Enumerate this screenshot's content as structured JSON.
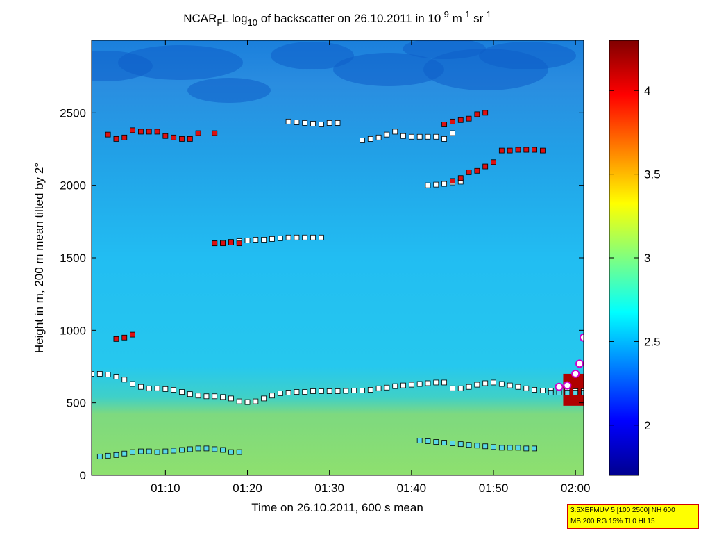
{
  "chart_data": {
    "type": "heatmap",
    "title": {
      "prefix": "NCAR",
      "sub1": "F",
      "mid": "L log",
      "sub2": "10",
      "mid2": " of backscatter on 26.10.2011 in 10",
      "sup1": "-9",
      "mid3": " m",
      "sup2": "-1",
      "mid4": " sr",
      "sup3": "-1"
    },
    "xlabel": "Time on 26.10.2011, 600 s mean",
    "ylabel": "Height in m, 200 m mean tilted by 2°",
    "x_range_minutes": [
      61,
      121
    ],
    "x_ticks": [
      {
        "minute": 70,
        "label": "01:10"
      },
      {
        "minute": 80,
        "label": "01:20"
      },
      {
        "minute": 90,
        "label": "01:30"
      },
      {
        "minute": 100,
        "label": "01:40"
      },
      {
        "minute": 110,
        "label": "01:50"
      },
      {
        "minute": 120,
        "label": "02:00"
      }
    ],
    "ylim": [
      0,
      3000
    ],
    "y_ticks": [
      {
        "value": 0,
        "label": "0"
      },
      {
        "value": 500,
        "label": "500"
      },
      {
        "value": 1000,
        "label": "1000"
      },
      {
        "value": 1500,
        "label": "1500"
      },
      {
        "value": 2000,
        "label": "2000"
      },
      {
        "value": 2500,
        "label": "2500"
      }
    ],
    "colorbar": {
      "range": [
        1.7,
        4.3
      ],
      "ticks": [
        {
          "value": 2,
          "label": "2"
        },
        {
          "value": 2.5,
          "label": "2.5"
        },
        {
          "value": 3,
          "label": "3"
        },
        {
          "value": 3.5,
          "label": "3.5"
        },
        {
          "value": 4,
          "label": "4"
        }
      ],
      "colormap": "jet"
    },
    "field": {
      "description_levels": "log10 backscatter approx by height",
      "profile": [
        {
          "h": 0,
          "v": 2.85
        },
        {
          "h": 400,
          "v": 2.78
        },
        {
          "h": 600,
          "v": 2.62
        },
        {
          "h": 900,
          "v": 2.48
        },
        {
          "h": 1500,
          "v": 2.42
        },
        {
          "h": 2200,
          "v": 2.35
        },
        {
          "h": 2600,
          "v": 2.28
        },
        {
          "h": 3000,
          "v": 2.2
        }
      ]
    },
    "series": [
      {
        "marker": "white",
        "points": [
          [
            61,
            700
          ],
          [
            62,
            700
          ],
          [
            63,
            695
          ],
          [
            64,
            680
          ],
          [
            65,
            660
          ],
          [
            66,
            630
          ],
          [
            67,
            610
          ],
          [
            68,
            600
          ],
          [
            69,
            600
          ],
          [
            70,
            595
          ],
          [
            71,
            590
          ],
          [
            72,
            575
          ],
          [
            73,
            560
          ],
          [
            74,
            550
          ],
          [
            75,
            545
          ],
          [
            76,
            545
          ],
          [
            77,
            540
          ],
          [
            78,
            530
          ],
          [
            79,
            510
          ],
          [
            80,
            505
          ],
          [
            81,
            510
          ],
          [
            82,
            530
          ],
          [
            83,
            550
          ],
          [
            84,
            565
          ],
          [
            85,
            570
          ],
          [
            86,
            575
          ],
          [
            87,
            575
          ],
          [
            88,
            580
          ],
          [
            89,
            580
          ],
          [
            90,
            580
          ],
          [
            91,
            580
          ],
          [
            92,
            582
          ],
          [
            93,
            585
          ],
          [
            94,
            585
          ],
          [
            95,
            590
          ],
          [
            96,
            600
          ],
          [
            97,
            605
          ],
          [
            98,
            615
          ],
          [
            99,
            620
          ],
          [
            100,
            625
          ],
          [
            101,
            630
          ],
          [
            102,
            635
          ],
          [
            103,
            640
          ],
          [
            104,
            640
          ],
          [
            105,
            600
          ],
          [
            106,
            600
          ],
          [
            107,
            610
          ],
          [
            108,
            625
          ],
          [
            109,
            635
          ],
          [
            110,
            640
          ],
          [
            111,
            630
          ],
          [
            112,
            620
          ],
          [
            113,
            610
          ],
          [
            114,
            600
          ],
          [
            115,
            590
          ],
          [
            116,
            585
          ],
          [
            117,
            585
          ],
          [
            118,
            580
          ],
          [
            119,
            600
          ],
          [
            120,
            580
          ],
          [
            121,
            580
          ]
        ]
      },
      {
        "marker": "white",
        "points": [
          [
            76,
            1600
          ],
          [
            77,
            1605
          ],
          [
            78,
            1610
          ],
          [
            79,
            1615
          ],
          [
            80,
            1620
          ],
          [
            81,
            1625
          ],
          [
            82,
            1625
          ],
          [
            83,
            1630
          ],
          [
            84,
            1635
          ],
          [
            85,
            1640
          ],
          [
            86,
            1640
          ],
          [
            87,
            1640
          ],
          [
            88,
            1640
          ],
          [
            89,
            1640
          ]
        ]
      },
      {
        "marker": "white",
        "points": [
          [
            85,
            2440
          ],
          [
            86,
            2435
          ],
          [
            87,
            2430
          ],
          [
            88,
            2425
          ],
          [
            89,
            2420
          ],
          [
            90,
            2430
          ],
          [
            91,
            2430
          ],
          [
            94,
            2310
          ],
          [
            95,
            2320
          ],
          [
            96,
            2330
          ],
          [
            97,
            2350
          ],
          [
            98,
            2370
          ],
          [
            99,
            2340
          ],
          [
            100,
            2335
          ],
          [
            101,
            2335
          ],
          [
            102,
            2335
          ],
          [
            103,
            2335
          ],
          [
            104,
            2320
          ],
          [
            105,
            2360
          ]
        ]
      },
      {
        "marker": "white",
        "points": [
          [
            102,
            2000
          ],
          [
            103,
            2005
          ],
          [
            104,
            2010
          ],
          [
            105,
            2020
          ],
          [
            106,
            2025
          ]
        ]
      },
      {
        "marker": "red",
        "points": [
          [
            63,
            2350
          ],
          [
            64,
            2320
          ],
          [
            65,
            2330
          ],
          [
            66,
            2380
          ],
          [
            67,
            2370
          ],
          [
            68,
            2370
          ],
          [
            69,
            2370
          ],
          [
            70,
            2340
          ],
          [
            71,
            2330
          ],
          [
            72,
            2320
          ],
          [
            73,
            2320
          ],
          [
            74,
            2360
          ],
          [
            76,
            2360
          ]
        ]
      },
      {
        "marker": "red",
        "points": [
          [
            76,
            1600
          ],
          [
            77,
            1600
          ],
          [
            78,
            1605
          ],
          [
            79,
            1600
          ]
        ]
      },
      {
        "marker": "red",
        "points": [
          [
            64,
            940
          ],
          [
            65,
            950
          ],
          [
            66,
            970
          ]
        ]
      },
      {
        "marker": "red",
        "points": [
          [
            104,
            2420
          ],
          [
            105,
            2440
          ],
          [
            106,
            2450
          ],
          [
            107,
            2460
          ],
          [
            108,
            2490
          ],
          [
            109,
            2500
          ]
        ]
      },
      {
        "marker": "red",
        "points": [
          [
            105,
            2030
          ],
          [
            106,
            2050
          ],
          [
            107,
            2090
          ],
          [
            108,
            2100
          ],
          [
            109,
            2130
          ],
          [
            110,
            2160
          ],
          [
            111,
            2240
          ],
          [
            112,
            2240
          ],
          [
            113,
            2245
          ],
          [
            114,
            2245
          ],
          [
            115,
            2245
          ],
          [
            116,
            2240
          ]
        ]
      },
      {
        "marker": "cyan",
        "points": [
          [
            62,
            130
          ],
          [
            63,
            135
          ],
          [
            64,
            140
          ],
          [
            65,
            150
          ],
          [
            66,
            160
          ],
          [
            67,
            165
          ],
          [
            68,
            165
          ],
          [
            69,
            160
          ],
          [
            70,
            165
          ],
          [
            71,
            170
          ],
          [
            72,
            175
          ],
          [
            73,
            180
          ],
          [
            74,
            185
          ],
          [
            75,
            185
          ],
          [
            76,
            180
          ],
          [
            77,
            175
          ],
          [
            78,
            160
          ],
          [
            79,
            160
          ]
        ]
      },
      {
        "marker": "cyan",
        "points": [
          [
            101,
            240
          ],
          [
            102,
            235
          ],
          [
            103,
            230
          ],
          [
            104,
            225
          ],
          [
            105,
            220
          ],
          [
            106,
            215
          ],
          [
            107,
            210
          ],
          [
            108,
            205
          ],
          [
            109,
            200
          ],
          [
            110,
            195
          ],
          [
            111,
            190
          ],
          [
            112,
            190
          ],
          [
            113,
            190
          ],
          [
            114,
            185
          ],
          [
            115,
            185
          ]
        ]
      },
      {
        "marker": "cyan",
        "points": [
          [
            117,
            570
          ],
          [
            118,
            570
          ],
          [
            119,
            570
          ],
          [
            120,
            570
          ],
          [
            121,
            570
          ]
        ]
      },
      {
        "marker": "circle-magenta",
        "points": [
          [
            118,
            610
          ],
          [
            119,
            620
          ],
          [
            120,
            700
          ],
          [
            120.5,
            770
          ],
          [
            121,
            950
          ]
        ]
      }
    ]
  },
  "infobox": {
    "line1": "3.5XEFMUV 5 [100 2500] NH 600",
    "line2": "MB 200 RG 15% TI 0 HI 15"
  }
}
